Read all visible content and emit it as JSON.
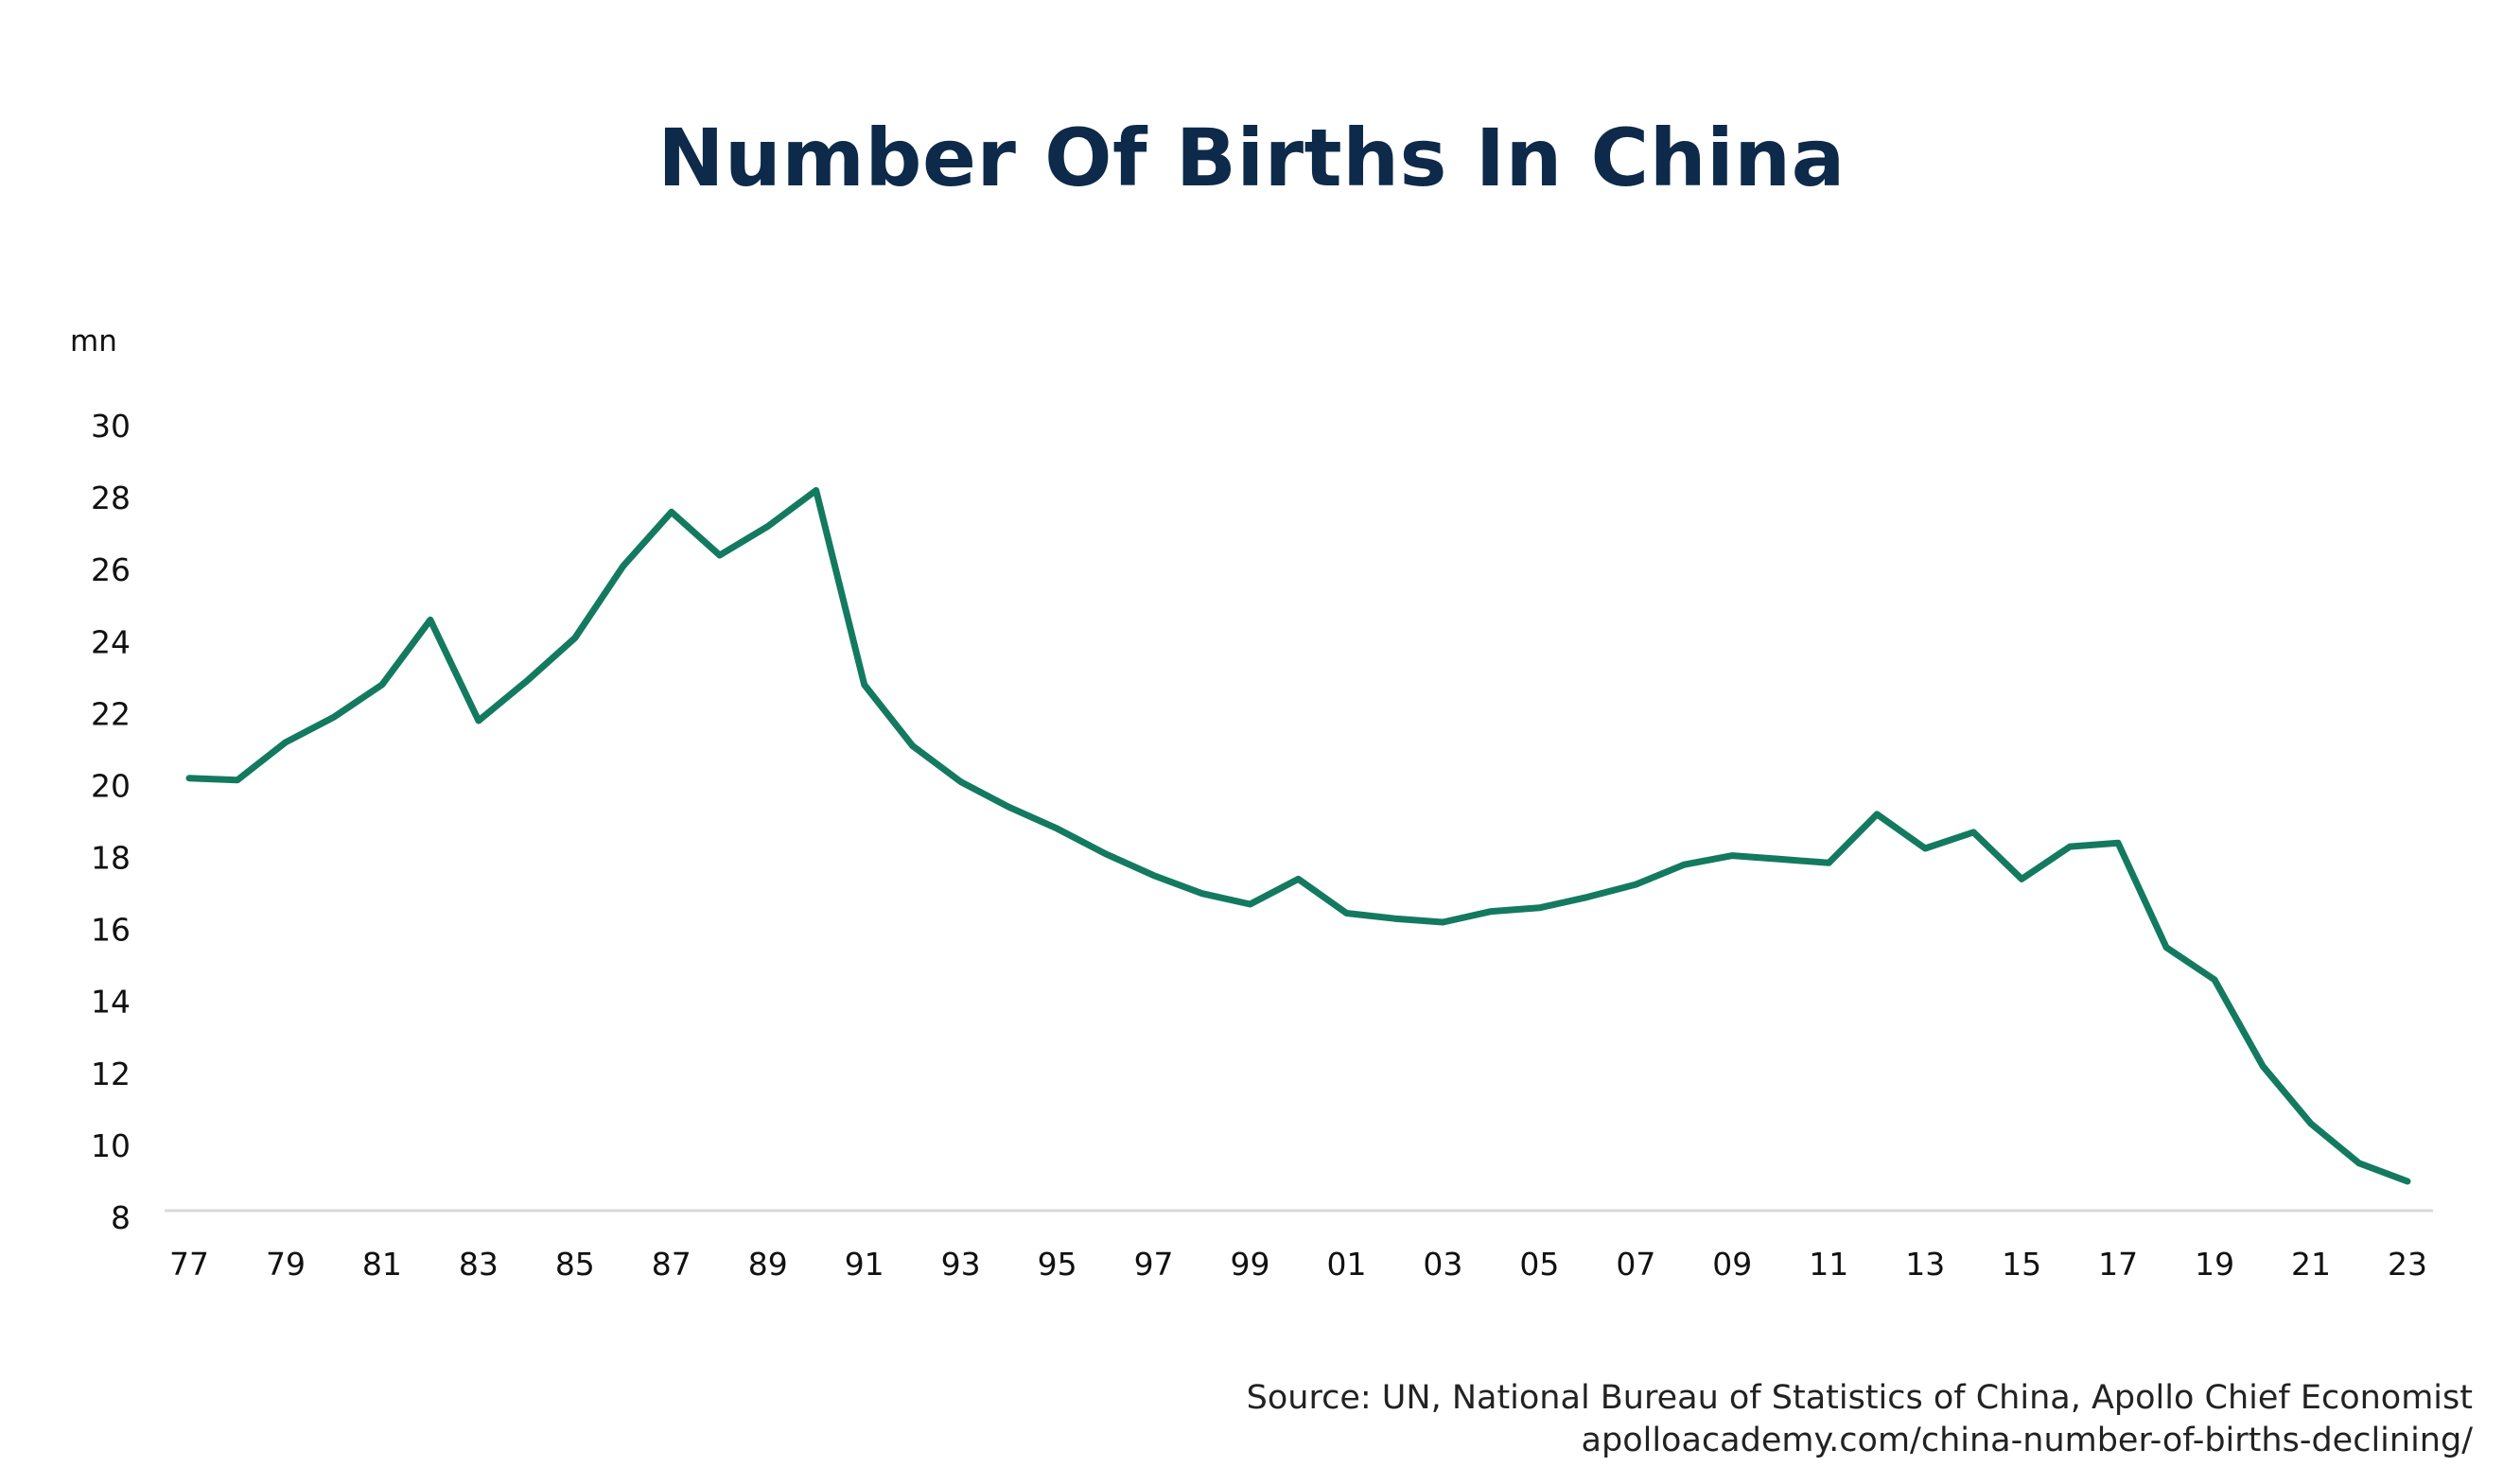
{
  "chart_data": {
    "type": "line",
    "title": "Number Of Births In China",
    "ylabel": "mn",
    "xlabel": "",
    "ylim": [
      8,
      30
    ],
    "yticks": [
      8,
      10,
      12,
      14,
      16,
      18,
      20,
      22,
      24,
      26,
      28,
      30
    ],
    "x_tick_labels": [
      "77",
      "79",
      "81",
      "83",
      "85",
      "87",
      "89",
      "91",
      "93",
      "95",
      "97",
      "99",
      "01",
      "03",
      "05",
      "07",
      "09",
      "11",
      "13",
      "15",
      "17",
      "19",
      "21",
      "23"
    ],
    "grid": false,
    "legend": "none",
    "series": [
      {
        "color": "#137a60",
        "x": [
          1977,
          1978,
          1979,
          1980,
          1981,
          1982,
          1983,
          1984,
          1985,
          1986,
          1987,
          1988,
          1989,
          1990,
          1991,
          1992,
          1993,
          1994,
          1995,
          1996,
          1997,
          1998,
          1999,
          2000,
          2001,
          2002,
          2003,
          2004,
          2005,
          2006,
          2007,
          2008,
          2009,
          2010,
          2011,
          2012,
          2013,
          2014,
          2015,
          2016,
          2017,
          2018,
          2019,
          2020,
          2021,
          2022,
          2023
        ],
        "values": [
          20.2,
          20.15,
          21.2,
          21.9,
          22.8,
          24.6,
          21.8,
          22.9,
          24.1,
          26.1,
          27.6,
          26.4,
          27.2,
          28.2,
          22.8,
          21.1,
          20.1,
          19.4,
          18.8,
          18.1,
          17.5,
          17.0,
          16.7,
          17.4,
          16.45,
          16.3,
          16.2,
          16.5,
          16.6,
          16.9,
          17.25,
          17.8,
          18.05,
          17.95,
          17.85,
          19.2,
          18.25,
          18.7,
          17.4,
          18.3,
          18.4,
          15.5,
          14.6,
          12.2,
          10.6,
          9.5,
          9.0
        ]
      }
    ]
  },
  "source": {
    "line1": "Source: UN, National Bureau of Statistics of China, Apollo Chief Economist",
    "line2": "apolloacademy.com/china-number-of-births-declining/"
  }
}
